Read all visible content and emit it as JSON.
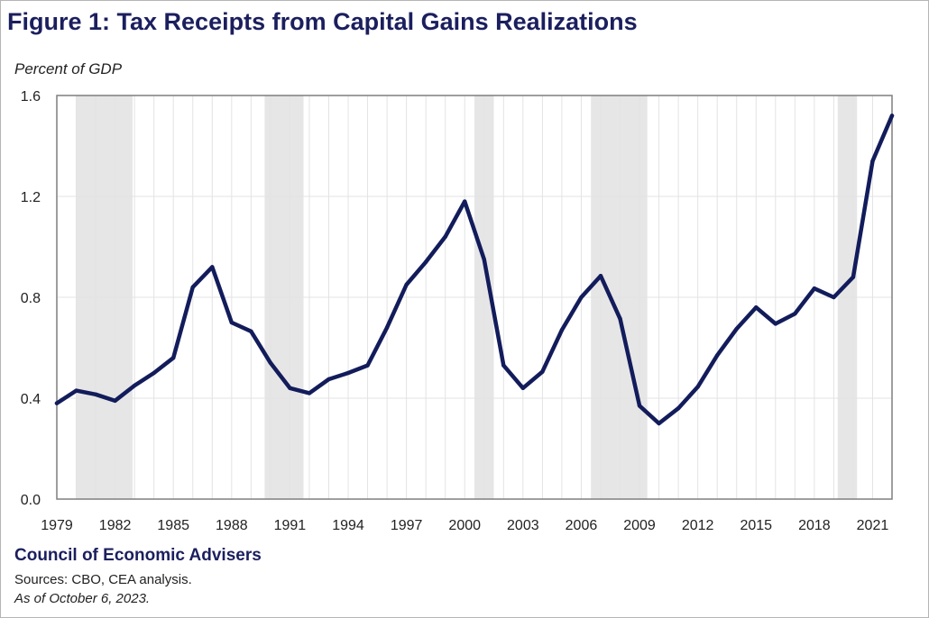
{
  "title": "Figure 1: Tax Receipts from Capital Gains Realizations",
  "footer": {
    "org": "Council of Economic Advisers",
    "sources": "Sources: CBO, CEA analysis.",
    "date": "As of October 6, 2023."
  },
  "colors": {
    "line": "#131c5b",
    "recession": "#e6e6e6",
    "grid": "#e3e3e3",
    "axis": "#7f7f7f"
  },
  "chart_data": {
    "type": "line",
    "title": "Figure 1: Tax Receipts from Capital Gains Realizations",
    "xlabel": "",
    "ylabel": "Percent of GDP",
    "xlim": [
      1979,
      2022
    ],
    "ylim": [
      0,
      1.6
    ],
    "x_ticks": [
      1979,
      1982,
      1985,
      1988,
      1991,
      1994,
      1997,
      2000,
      2003,
      2006,
      2009,
      2012,
      2015,
      2018,
      2021
    ],
    "y_ticks": [
      0.0,
      0.4,
      0.8,
      1.2,
      1.6
    ],
    "y_tick_labels": [
      "0.0",
      "0.4",
      "0.8",
      "1.2",
      "1.6"
    ],
    "recessions": [
      [
        1980,
        1982.9
      ],
      [
        1989.7,
        1991.7
      ],
      [
        2000.5,
        2001.5
      ],
      [
        2006.5,
        2009.4
      ],
      [
        2019.2,
        2020.2
      ]
    ],
    "series": [
      {
        "name": "Tax receipts from capital gains realizations (% of GDP)",
        "x": [
          1979,
          1980,
          1981,
          1982,
          1983,
          1984,
          1985,
          1986,
          1987,
          1988,
          1989,
          1990,
          1991,
          1992,
          1993,
          1994,
          1995,
          1996,
          1997,
          1998,
          1999,
          2000,
          2001,
          2002,
          2003,
          2004,
          2005,
          2006,
          2007,
          2008,
          2009,
          2010,
          2011,
          2012,
          2013,
          2014,
          2015,
          2016,
          2017,
          2018,
          2019,
          2020,
          2021,
          2022
        ],
        "values": [
          0.38,
          0.43,
          0.415,
          0.39,
          0.45,
          0.5,
          0.56,
          0.84,
          0.92,
          0.7,
          0.665,
          0.54,
          0.44,
          0.42,
          0.475,
          0.5,
          0.53,
          0.68,
          0.85,
          0.94,
          1.04,
          1.18,
          0.95,
          0.53,
          0.44,
          0.505,
          0.67,
          0.8,
          0.885,
          0.715,
          0.37,
          0.3,
          0.36,
          0.445,
          0.57,
          0.675,
          0.76,
          0.695,
          0.735,
          0.835,
          0.8,
          0.88,
          1.34,
          1.52
        ]
      }
    ]
  }
}
